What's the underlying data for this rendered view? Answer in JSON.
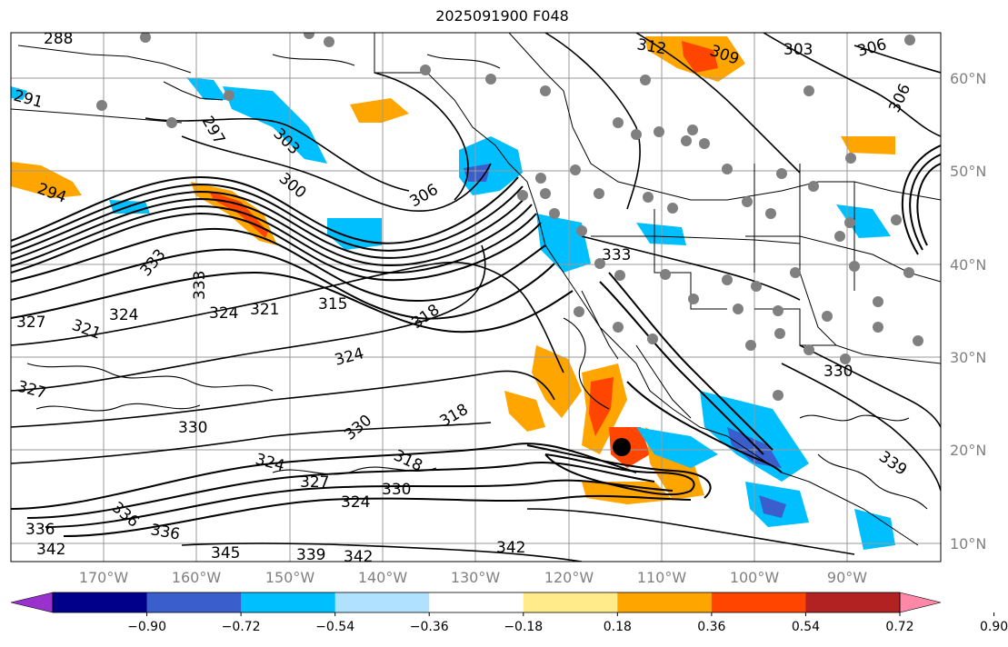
{
  "title": "2025091900 F048",
  "lat_labels": [
    "60°N",
    "50°N",
    "40°N",
    "30°N",
    "20°N",
    "10°N"
  ],
  "lon_labels": [
    "170°W",
    "160°W",
    "150°W",
    "140°W",
    "130°W",
    "120°W",
    "110°W",
    "100°W",
    "90°W"
  ],
  "colorbar": {
    "ticks": [
      "−0.90",
      "−0.72",
      "−0.54",
      "−0.36",
      "−0.18",
      "0.18",
      "0.36",
      "0.54",
      "0.72",
      "0.90"
    ],
    "colors": [
      "#9932cc",
      "#00008b",
      "#3a5fcd",
      "#00bfff",
      "#b0e2ff",
      "#ffffff",
      "#ffeb8a",
      "#ffa500",
      "#ff4500",
      "#b22222",
      "#ff88a8"
    ]
  },
  "contour_labels": [
    "288",
    "291",
    "294",
    "297",
    "300",
    "303",
    "306",
    "309",
    "312",
    "315",
    "318",
    "321",
    "324",
    "327",
    "330",
    "333",
    "336",
    "339",
    "342",
    "345"
  ],
  "map_labels": {
    "t288": "288",
    "t291": "291",
    "t294": "294",
    "t297": "297",
    "t300": "300",
    "t303a": "303",
    "t303b": "303",
    "t306a": "306",
    "t306b": "306",
    "t306c": "306",
    "t309": "309",
    "t312": "312",
    "t315": "315",
    "t318a": "318",
    "t318b": "318",
    "t318c": "318",
    "t321a": "321",
    "t321b": "321",
    "t324a": "324",
    "t324b": "324",
    "t324c": "324",
    "t324d": "324",
    "t324e": "324",
    "t327a": "327",
    "t327b": "327",
    "t327c": "327",
    "t330a": "330",
    "t330b": "330",
    "t330c": "330",
    "t330d": "330",
    "t333a": "333",
    "t333b": "333",
    "t333c": "333",
    "t336a": "336",
    "t336b": "336",
    "t336c": "336",
    "t339a": "339",
    "t339b": "339",
    "t342a": "342",
    "t342b": "342",
    "t342c": "342",
    "t345": "345"
  }
}
